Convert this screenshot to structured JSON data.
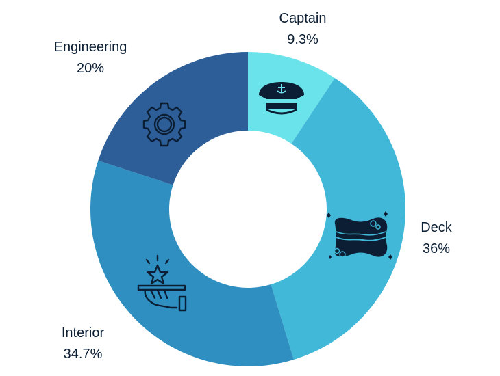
{
  "chart_data": {
    "type": "pie",
    "donut": true,
    "legend": "none",
    "slices": [
      {
        "label": "Captain",
        "value": 9.3,
        "value_label": "9.3%",
        "color": "#6be3ea",
        "icon": "captain-hat-icon"
      },
      {
        "label": "Deck",
        "value": 36,
        "value_label": "36%",
        "color": "#42b8d8",
        "icon": "sponge-icon"
      },
      {
        "label": "Interior",
        "value": 34.7,
        "value_label": "34.7%",
        "color": "#2e8fc0",
        "icon": "serving-hand-star-icon"
      },
      {
        "label": "Engineering",
        "value": 20,
        "value_label": "20%",
        "color": "#2d5e98",
        "icon": "gear-icon"
      }
    ]
  }
}
